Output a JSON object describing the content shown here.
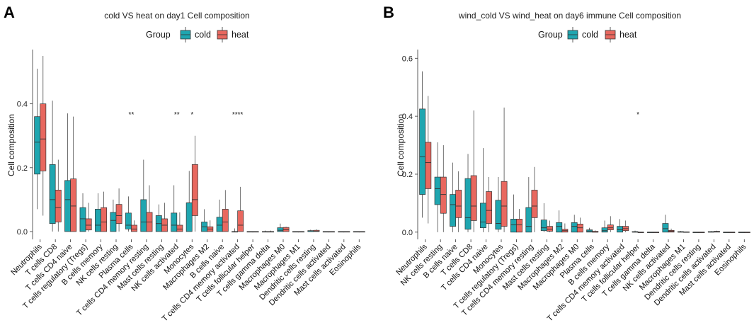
{
  "colors": {
    "cold": "#1FA6B0",
    "heat": "#E8685F"
  },
  "legend": {
    "title": "Group",
    "labels": [
      "cold",
      "heat"
    ]
  },
  "chart_data": [
    {
      "type": "boxplot",
      "panel": "A",
      "title": "cold VS heat on day1 Cell composition",
      "ylabel": "Cell composition",
      "xlabel": "",
      "ylim": [
        -0.02,
        0.57
      ],
      "yticks": [
        "0.0",
        "0.2",
        "0.4"
      ],
      "yticks_values": [
        0.0,
        0.2,
        0.4
      ],
      "categories": [
        "Neutrophils",
        "T cells CD8",
        "T cells CD4 naive",
        "T cells regulatory (Tregs)",
        "B cells memory",
        "NK cells resting",
        "Plasma cells",
        "T cells CD4 memory resting",
        "Mast cells resting",
        "NK cells activated",
        "Monocytes",
        "Macrophages M2",
        "B cells naive",
        "T cells CD4 memory activated",
        "T cells follicular helper",
        "T cells gamma delta",
        "Macrophages M0",
        "Macrophages M1",
        "Dendritic cells resting",
        "Dendritic cells activated",
        "Mast cells activated",
        "Eosinophils"
      ],
      "significance": [
        "",
        "",
        "",
        "",
        "",
        "",
        "**",
        "",
        "",
        "**",
        "*",
        "",
        "",
        "****",
        "",
        "",
        "",
        "",
        "",
        "",
        "",
        ""
      ],
      "series": [
        {
          "name": "cold",
          "boxes": [
            [
              0.07,
              0.18,
              0.28,
              0.36,
              0.51
            ],
            [
              0.0,
              0.025,
              0.1,
              0.21,
              0.41
            ],
            [
              0.0,
              0.0,
              0.1,
              0.16,
              0.37
            ],
            [
              0.0,
              0.0,
              0.04,
              0.075,
              0.12
            ],
            [
              0.0,
              0.0,
              0.02,
              0.07,
              0.12
            ],
            [
              0.0,
              0.0,
              0.035,
              0.06,
              0.1
            ],
            [
              0.0,
              0.008,
              0.02,
              0.058,
              0.11
            ],
            [
              0.0,
              0.0,
              0.03,
              0.1,
              0.225
            ],
            [
              0.0,
              0.0,
              0.025,
              0.05,
              0.085
            ],
            [
              0.0,
              0.0,
              0.02,
              0.058,
              0.145
            ],
            [
              0.0,
              0.0,
              0.09,
              0.09,
              0.19
            ],
            [
              0.0,
              0.0,
              0.015,
              0.03,
              0.07
            ],
            [
              0.0,
              0.0,
              0.02,
              0.045,
              0.1
            ],
            [
              0.0,
              0.0,
              0.0,
              0.0,
              0.01
            ],
            [
              0.0,
              0.0,
              0.0,
              0.0,
              0.0
            ],
            [
              0.0,
              0.0,
              0.0,
              0.0,
              0.003
            ],
            [
              0.0,
              0.0,
              0.004,
              0.012,
              0.025
            ],
            [
              0.0,
              0.0,
              0.0,
              0.0,
              0.0
            ],
            [
              0.0,
              0.0,
              0.0,
              0.003,
              0.006
            ],
            [
              0.0,
              0.0,
              0.0,
              0.0,
              0.0
            ],
            [
              0.0,
              0.0,
              0.0,
              0.0,
              0.0
            ],
            [
              0.0,
              0.0,
              0.0,
              0.0,
              0.0
            ]
          ]
        },
        {
          "name": "heat",
          "boxes": [
            [
              0.05,
              0.19,
              0.29,
              0.4,
              0.55
            ],
            [
              0.0,
              0.03,
              0.075,
              0.13,
              0.225
            ],
            [
              0.0,
              0.0,
              0.08,
              0.165,
              0.36
            ],
            [
              0.0,
              0.005,
              0.02,
              0.04,
              0.09
            ],
            [
              0.0,
              0.0,
              0.03,
              0.075,
              0.125
            ],
            [
              0.0,
              0.025,
              0.05,
              0.085,
              0.135
            ],
            [
              0.0,
              0.0,
              0.008,
              0.02,
              0.035
            ],
            [
              0.0,
              0.0,
              0.03,
              0.06,
              0.145
            ],
            [
              0.0,
              0.0,
              0.02,
              0.04,
              0.09
            ],
            [
              0.0,
              0.0,
              0.008,
              0.02,
              0.06
            ],
            [
              0.0,
              0.05,
              0.1,
              0.21,
              0.3
            ],
            [
              0.0,
              0.0,
              0.008,
              0.015,
              0.035
            ],
            [
              0.0,
              0.0,
              0.03,
              0.07,
              0.13
            ],
            [
              0.0,
              0.0,
              0.02,
              0.065,
              0.14
            ],
            [
              0.0,
              0.0,
              0.0,
              0.0,
              0.0
            ],
            [
              0.0,
              0.0,
              0.0,
              0.0,
              0.003
            ],
            [
              0.0,
              0.0,
              0.006,
              0.013,
              0.015
            ],
            [
              0.0,
              0.0,
              0.0,
              0.0,
              0.0
            ],
            [
              0.0,
              0.0,
              0.001,
              0.004,
              0.007
            ],
            [
              0.0,
              0.0,
              0.0,
              0.0,
              0.0
            ],
            [
              0.0,
              0.0,
              0.0,
              0.0,
              0.0
            ],
            [
              0.0,
              0.0,
              0.0,
              0.0,
              0.0
            ]
          ]
        }
      ]
    },
    {
      "type": "boxplot",
      "panel": "B",
      "title": "wind_cold VS wind_heat on day6 immune Cell composition",
      "ylabel": "Cell composition",
      "xlabel": "",
      "ylim": [
        -0.02,
        0.63
      ],
      "yticks": [
        "0.0",
        "0.2",
        "0.4",
        "0.6"
      ],
      "yticks_values": [
        0.0,
        0.2,
        0.4,
        0.6
      ],
      "categories": [
        "Neutrophils",
        "NK cells resting",
        "B cells naive",
        "T cells CD8",
        "T cells CD4 naive",
        "Monocytes",
        "T cells regulatory (Tregs)",
        "T cells CD4 memory resting",
        "Mast cells resting",
        "Macrophages M2",
        "Macrophages M0",
        "Plasma cells",
        "B cells memory",
        "T cells CD4 memory activated",
        "T cells follicular helper",
        "T cells gamma delta",
        "NK cells activated",
        "Macrophages M1",
        "Dendritic cells resting",
        "Dendritic cells activated",
        "Mast cells activated",
        "Eosinophils"
      ],
      "significance": [
        "",
        "",
        "",
        "",
        "",
        "",
        "",
        "",
        "",
        "",
        "",
        "",
        "",
        "",
        "*",
        "",
        "",
        "",
        "",
        "",
        "",
        ""
      ],
      "series": [
        {
          "name": "cold",
          "boxes": [
            [
              0.05,
              0.13,
              0.26,
              0.425,
              0.555
            ],
            [
              0.0,
              0.095,
              0.15,
              0.19,
              0.31
            ],
            [
              0.0,
              0.02,
              0.095,
              0.13,
              0.24
            ],
            [
              0.0,
              0.01,
              0.05,
              0.185,
              0.27
            ],
            [
              0.0,
              0.015,
              0.035,
              0.1,
              0.29
            ],
            [
              0.0,
              0.01,
              0.03,
              0.11,
              0.19
            ],
            [
              0.0,
              0.0,
              0.025,
              0.045,
              0.13
            ],
            [
              0.0,
              0.0,
              0.02,
              0.085,
              0.19
            ],
            [
              0.0,
              0.005,
              0.015,
              0.042,
              0.1
            ],
            [
              0.0,
              0.0,
              0.02,
              0.033,
              0.075
            ],
            [
              0.0,
              0.0,
              0.02,
              0.033,
              0.06
            ],
            [
              0.0,
              0.0,
              0.004,
              0.008,
              0.015
            ],
            [
              0.0,
              0.0,
              0.005,
              0.015,
              0.04
            ],
            [
              0.0,
              0.0,
              0.008,
              0.02,
              0.045
            ],
            [
              0.0,
              0.0,
              0.0,
              0.002,
              0.005
            ],
            [
              0.0,
              0.0,
              0.0,
              0.0,
              0.0
            ],
            [
              0.0,
              0.0,
              0.012,
              0.03,
              0.06
            ],
            [
              0.0,
              0.0,
              0.0,
              0.002,
              0.004
            ],
            [
              0.0,
              0.0,
              0.0,
              0.0,
              0.0
            ],
            [
              0.0,
              0.0,
              0.0,
              0.002,
              0.004
            ],
            [
              0.0,
              0.0,
              0.0,
              0.0,
              0.0
            ],
            [
              0.0,
              0.0,
              0.0,
              0.0,
              0.0
            ]
          ]
        },
        {
          "name": "heat",
          "boxes": [
            [
              0.03,
              0.15,
              0.24,
              0.31,
              0.47
            ],
            [
              0.0,
              0.065,
              0.13,
              0.19,
              0.3
            ],
            [
              0.0,
              0.05,
              0.09,
              0.145,
              0.21
            ],
            [
              0.0,
              0.04,
              0.09,
              0.195,
              0.42
            ],
            [
              0.0,
              0.03,
              0.075,
              0.14,
              0.19
            ],
            [
              0.0,
              0.02,
              0.09,
              0.175,
              0.43
            ],
            [
              0.0,
              0.0,
              0.025,
              0.045,
              0.08
            ],
            [
              0.0,
              0.05,
              0.09,
              0.145,
              0.225
            ],
            [
              0.0,
              0.003,
              0.01,
              0.02,
              0.04
            ],
            [
              0.0,
              0.0,
              0.005,
              0.01,
              0.03
            ],
            [
              0.0,
              0.0,
              0.015,
              0.028,
              0.05
            ],
            [
              0.0,
              0.0,
              0.0,
              0.003,
              0.006
            ],
            [
              0.0,
              0.008,
              0.015,
              0.025,
              0.055
            ],
            [
              0.0,
              0.005,
              0.012,
              0.02,
              0.04
            ],
            [
              0.0,
              0.0,
              0.0,
              0.0,
              0.0
            ],
            [
              0.0,
              0.0,
              0.0,
              0.0,
              0.0
            ],
            [
              0.0,
              0.0,
              0.003,
              0.006,
              0.012
            ],
            [
              0.0,
              0.0,
              0.0,
              0.001,
              0.002
            ],
            [
              0.0,
              0.0,
              0.0,
              0.0,
              0.0
            ],
            [
              0.0,
              0.0,
              0.001,
              0.003,
              0.005
            ],
            [
              0.0,
              0.0,
              0.0,
              0.0,
              0.0
            ],
            [
              0.0,
              0.0,
              0.0,
              0.0,
              0.0
            ]
          ]
        }
      ]
    }
  ]
}
